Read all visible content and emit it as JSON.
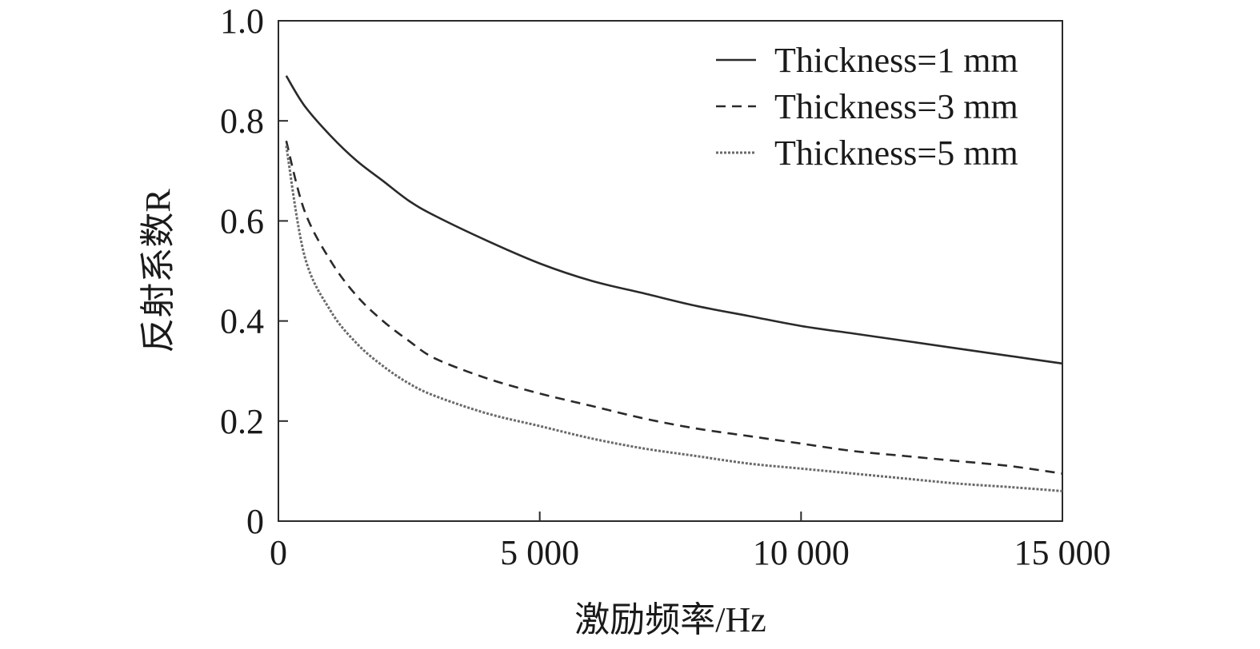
{
  "chart_data": {
    "type": "line",
    "title": "",
    "xlabel": "激励频率/Hz",
    "ylabel": "反射系数R",
    "xlim": [
      0,
      15000
    ],
    "ylim": [
      0,
      1.0
    ],
    "x_ticks": [
      {
        "value": 0,
        "label": "0"
      },
      {
        "value": 5000,
        "label": "5 000"
      },
      {
        "value": 10000,
        "label": "10 000"
      },
      {
        "value": 15000,
        "label": "15 000"
      }
    ],
    "y_ticks": [
      {
        "value": 0,
        "label": "0"
      },
      {
        "value": 0.2,
        "label": "0.2"
      },
      {
        "value": 0.4,
        "label": "0.4"
      },
      {
        "value": 0.6,
        "label": "0.6"
      },
      {
        "value": 0.8,
        "label": "0.8"
      },
      {
        "value": 1.0,
        "label": "1.0"
      }
    ],
    "grid": false,
    "legend_position": "top-right",
    "x": [
      150,
      500,
      1000,
      1500,
      2000,
      2500,
      3000,
      4000,
      5000,
      6000,
      7000,
      8000,
      9000,
      10000,
      11000,
      12000,
      13000,
      14000,
      15000
    ],
    "series": [
      {
        "name": "Thickness=1 mm",
        "style": "solid",
        "color": "#2a2a2a",
        "values": [
          0.89,
          0.83,
          0.77,
          0.72,
          0.68,
          0.64,
          0.61,
          0.56,
          0.515,
          0.48,
          0.455,
          0.43,
          0.41,
          0.39,
          0.375,
          0.36,
          0.345,
          0.33,
          0.315
        ]
      },
      {
        "name": "Thickness=3 mm",
        "style": "dashed",
        "color": "#2a2a2a",
        "values": [
          0.76,
          0.62,
          0.52,
          0.45,
          0.4,
          0.36,
          0.325,
          0.285,
          0.255,
          0.23,
          0.205,
          0.185,
          0.17,
          0.155,
          0.14,
          0.13,
          0.12,
          0.11,
          0.095
        ]
      },
      {
        "name": "Thickness=5 mm",
        "style": "dotted",
        "color": "#6a6a6a",
        "values": [
          0.75,
          0.53,
          0.42,
          0.355,
          0.31,
          0.275,
          0.25,
          0.215,
          0.19,
          0.165,
          0.145,
          0.13,
          0.115,
          0.105,
          0.095,
          0.085,
          0.075,
          0.068,
          0.06
        ]
      }
    ]
  }
}
